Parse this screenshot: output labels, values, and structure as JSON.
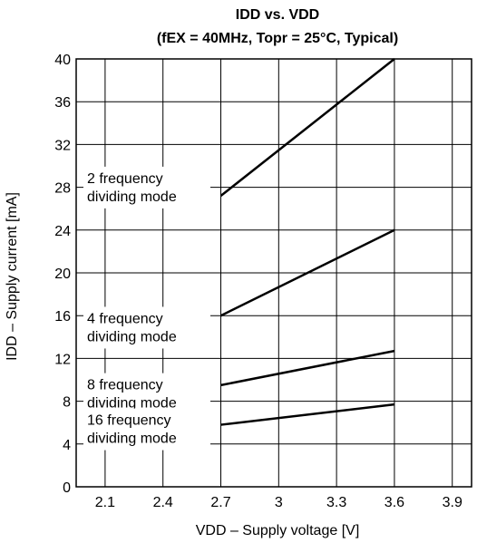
{
  "chart_data": {
    "type": "line",
    "title": "IDD vs. VDD",
    "subtitle": "(fEX = 40MHz, Topr = 25°C, Typical)",
    "xlabel": "VDD – Supply voltage [V]",
    "ylabel": "IDD – Supply current [mA]",
    "xlim": [
      1.95,
      4.0
    ],
    "ylim": [
      0,
      40
    ],
    "xticks": [
      2.1,
      2.4,
      2.7,
      3.0,
      3.3,
      3.6,
      3.9
    ],
    "xtick_labels": [
      "2.1",
      "2.4",
      "2.7",
      "3",
      "3.3",
      "3.6",
      "3.9"
    ],
    "yticks": [
      0,
      4,
      8,
      12,
      16,
      20,
      24,
      28,
      32,
      36,
      40
    ],
    "ytick_labels": [
      "0",
      "4",
      "8",
      "12",
      "16",
      "20",
      "24",
      "28",
      "32",
      "36",
      "40"
    ],
    "grid": true,
    "series": [
      {
        "name": "2 frequency dividing mode",
        "label_lines": [
          "2 frequency",
          "dividing mode"
        ],
        "x": [
          2.7,
          3.6
        ],
        "y": [
          27.2,
          40
        ]
      },
      {
        "name": "4 frequency dividing mode",
        "label_lines": [
          "4 frequency",
          "dividing mode"
        ],
        "x": [
          2.7,
          3.6
        ],
        "y": [
          16,
          24
        ]
      },
      {
        "name": "8 frequency dividing mode",
        "label_lines": [
          "8 frequency",
          "dividing mode"
        ],
        "x": [
          2.7,
          3.6
        ],
        "y": [
          9.5,
          12.7
        ]
      },
      {
        "name": "16 frequency dividing mode",
        "label_lines": [
          "16 frequency",
          "dividing mode"
        ],
        "x": [
          2.7,
          3.6
        ],
        "y": [
          5.8,
          7.7
        ]
      }
    ]
  }
}
